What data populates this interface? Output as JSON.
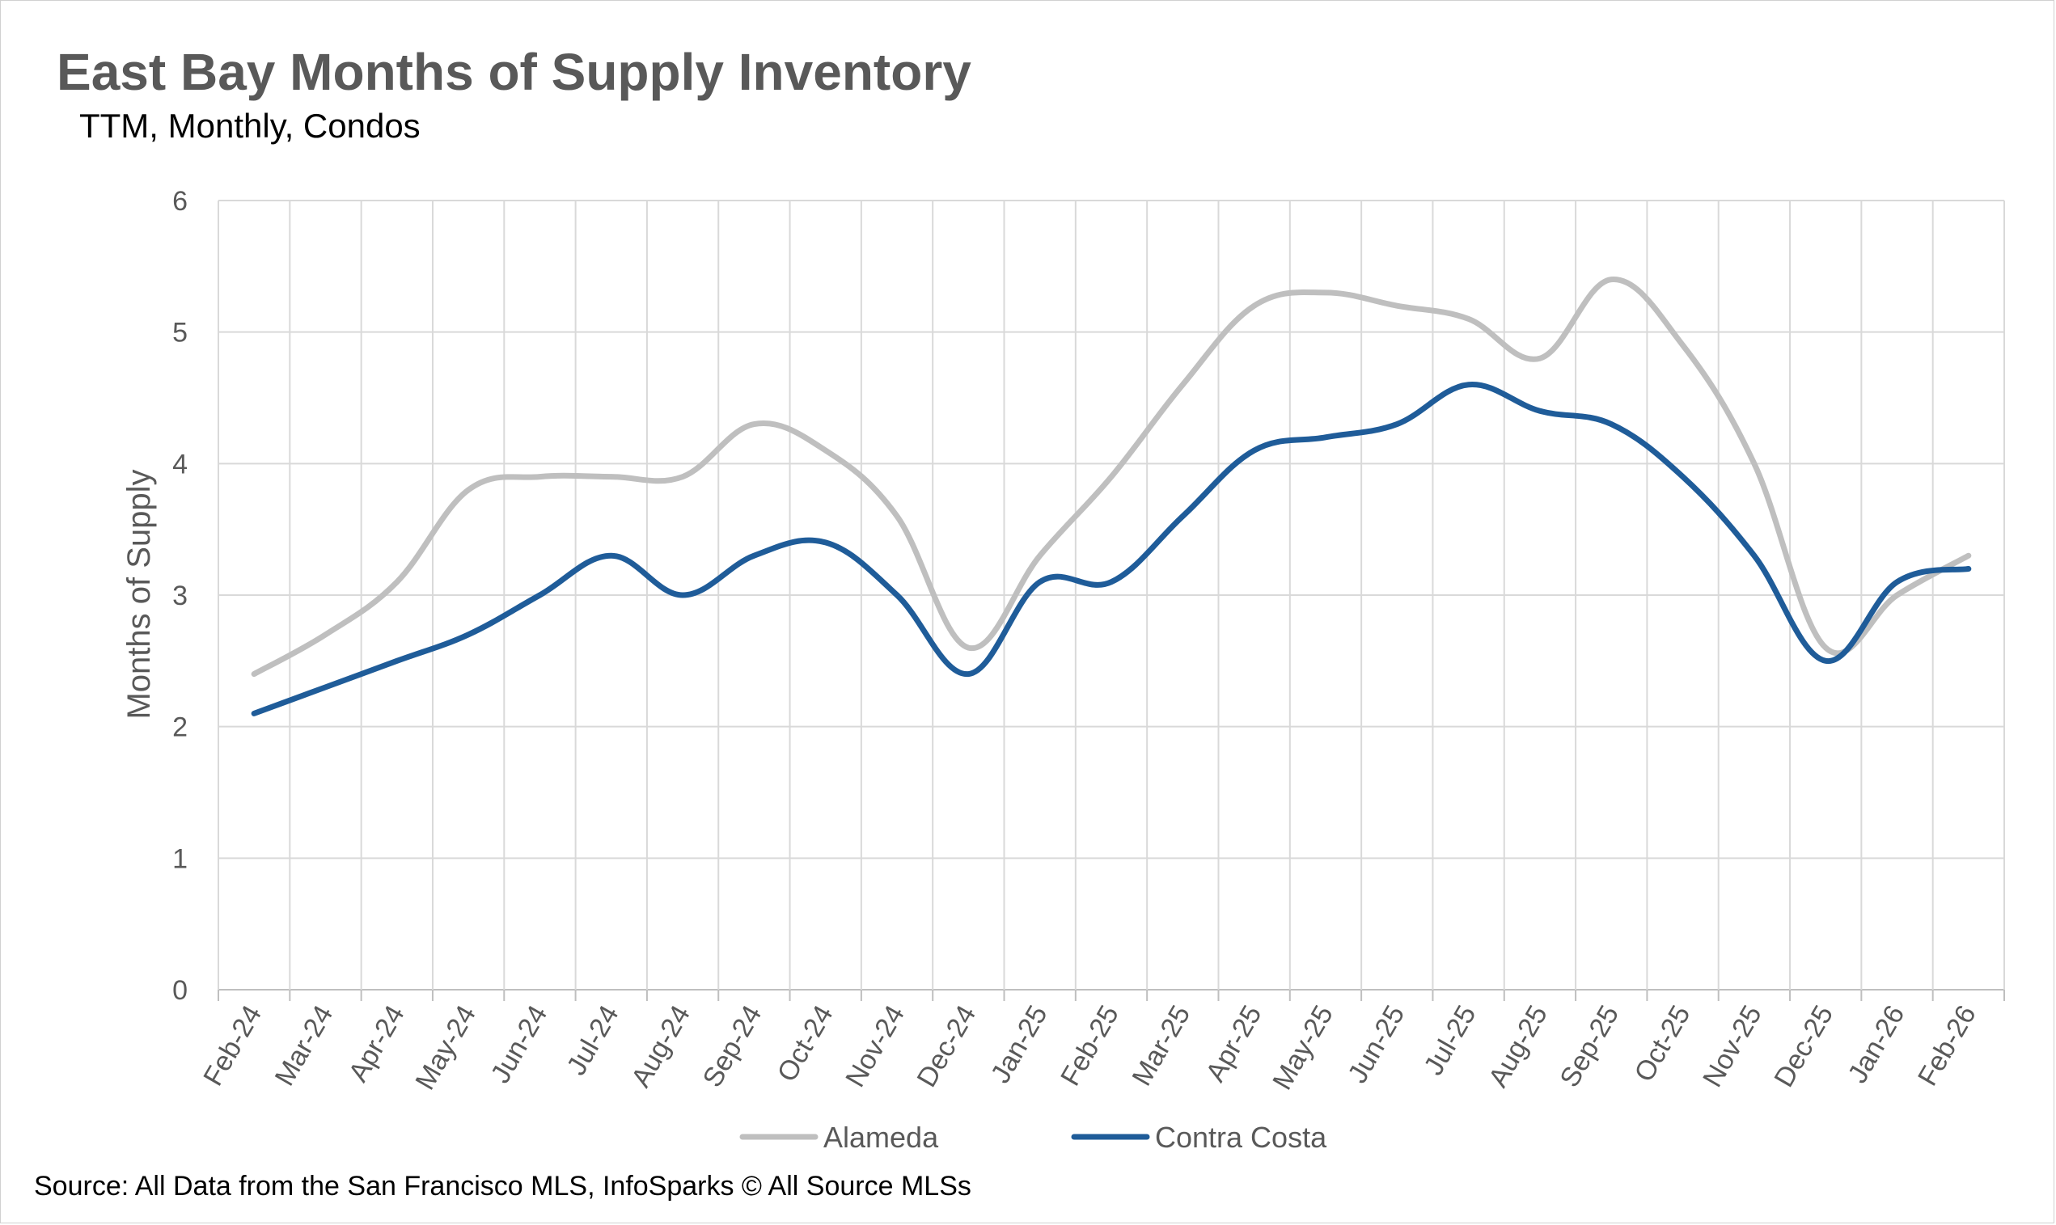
{
  "chart_data": {
    "type": "line",
    "title": "East Bay Months of Supply Inventory",
    "subtitle": "TTM, Monthly, Condos",
    "xlabel": "",
    "ylabel": "Months of Supply",
    "ylim": [
      0,
      6
    ],
    "yticks": [
      "0",
      "1",
      "2",
      "3",
      "4",
      "5",
      "6"
    ],
    "grid": true,
    "legend_position": "bottom",
    "categories": [
      "Feb-24",
      "Mar-24",
      "Apr-24",
      "May-24",
      "Jun-24",
      "Jul-24",
      "Aug-24",
      "Sep-24",
      "Oct-24",
      "Nov-24",
      "Dec-24",
      "Jan-25",
      "Feb-25",
      "Mar-25",
      "Apr-25",
      "May-25",
      "Jun-25",
      "Jul-25",
      "Aug-25",
      "Sep-25",
      "Oct-25",
      "Nov-25",
      "Dec-25",
      "Jan-26",
      "Feb-26"
    ],
    "series": [
      {
        "name": "Alameda",
        "color": "#BFBFBF",
        "values": [
          2.4,
          2.7,
          3.1,
          3.8,
          3.9,
          3.9,
          3.9,
          4.3,
          4.1,
          3.6,
          2.6,
          3.3,
          3.9,
          4.6,
          5.2,
          5.3,
          5.2,
          5.1,
          4.8,
          5.4,
          4.9,
          4.0,
          2.6,
          3.0,
          3.3
        ]
      },
      {
        "name": "Contra Costa",
        "color": "#1F5C99",
        "values": [
          2.1,
          2.3,
          2.5,
          2.7,
          3.0,
          3.3,
          3.0,
          3.3,
          3.4,
          3.0,
          2.4,
          3.1,
          3.1,
          3.6,
          4.1,
          4.2,
          4.3,
          4.6,
          4.4,
          4.3,
          3.9,
          3.3,
          2.5,
          3.1,
          3.2
        ]
      }
    ]
  },
  "source": "Source: All Data from the San Francisco MLS, InfoSparks © All Source MLSs"
}
